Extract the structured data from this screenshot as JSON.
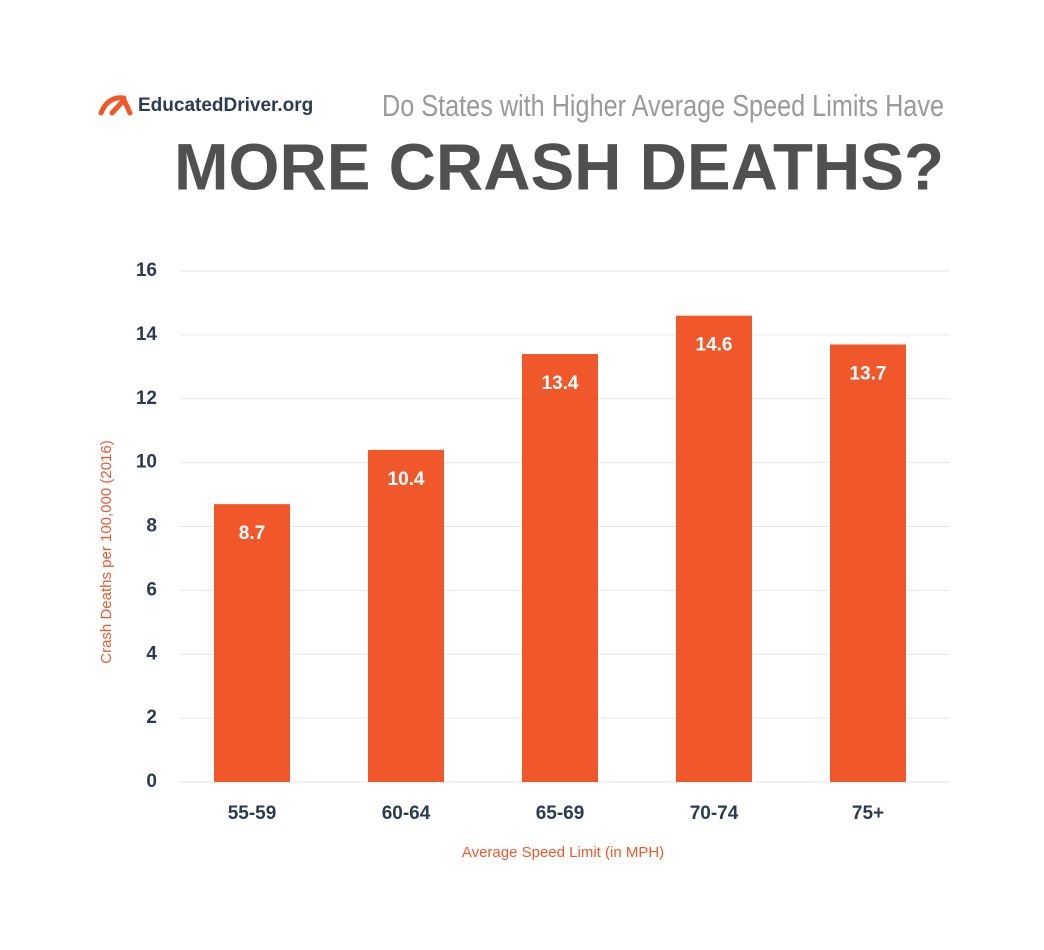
{
  "chart_data": {
    "type": "bar",
    "brand": "EducatedDriver.org",
    "subtitle": "Do States with Higher Average Speed Limits Have",
    "title": "MORE CRASH DEATHS?",
    "x_label": "Average Speed Limit (in MPH)",
    "y_label": "Crash Deaths per 100,000 (2016)",
    "categories": [
      "55-59",
      "60-64",
      "65-69",
      "70-74",
      "75+"
    ],
    "values": [
      8.7,
      10.4,
      13.4,
      14.6,
      13.7
    ],
    "color": "#f0582b",
    "ylim": [
      0,
      16
    ],
    "yticks": [
      0,
      2,
      4,
      6,
      8,
      10,
      12,
      14,
      16
    ],
    "grid": true
  }
}
